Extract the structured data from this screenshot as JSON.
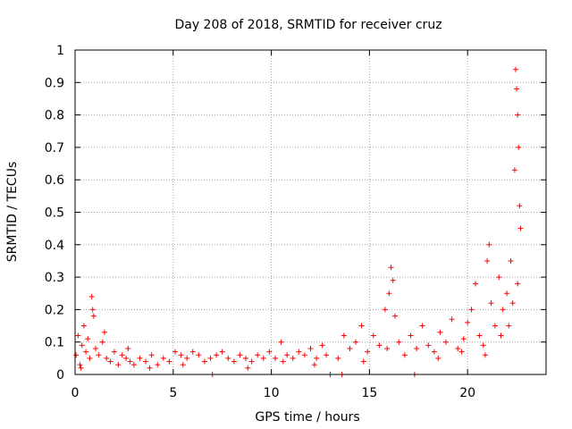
{
  "chart_data": {
    "type": "scatter",
    "title": "Day 208 of 2018, SRMTID for receiver cruz",
    "xlabel": "GPS time / hours",
    "ylabel": "SRMTID / TECUs",
    "xlim": [
      0,
      24
    ],
    "ylim": [
      0,
      1
    ],
    "grid": true,
    "marker": "plus",
    "x_ticks": [
      0,
      5,
      10,
      15,
      20
    ],
    "x_tick_labels": [
      "0",
      "5",
      "10",
      "15",
      "20"
    ],
    "y_ticks": [
      0,
      0.1,
      0.2,
      0.3,
      0.4,
      0.5,
      0.6,
      0.7,
      0.8,
      0.9,
      1
    ],
    "y_tick_labels": [
      "0",
      "0.1",
      "0.2",
      "0.3",
      "0.4",
      "0.5",
      "0.6",
      "0.7",
      "0.8",
      "0.9",
      "1"
    ],
    "series": [
      {
        "name": "SRMTID",
        "color": "#ff0000",
        "x": [
          0.05,
          0.15,
          0.25,
          0.35,
          0.45,
          0.55,
          0.65,
          0.75,
          0.85,
          0.95,
          1.05,
          1.2,
          1.4,
          1.6,
          1.8,
          2.0,
          2.2,
          2.4,
          2.6,
          2.8,
          3.0,
          3.3,
          3.6,
          3.9,
          4.2,
          4.5,
          4.8,
          5.1,
          5.4,
          5.7,
          6.0,
          6.3,
          6.6,
          6.9,
          7.2,
          7.5,
          7.8,
          8.1,
          8.4,
          8.7,
          9.0,
          9.3,
          9.6,
          9.9,
          10.2,
          10.5,
          10.8,
          11.1,
          11.4,
          11.7,
          12.0,
          12.3,
          12.6,
          12.8,
          13.0,
          13.4,
          13.7,
          14.0,
          14.3,
          14.6,
          14.9,
          15.2,
          15.5,
          15.8,
          16.0,
          16.1,
          16.2,
          16.3,
          16.5,
          16.8,
          17.1,
          17.4,
          17.7,
          18.0,
          18.3,
          18.6,
          18.9,
          19.2,
          19.5,
          19.8,
          20.0,
          20.2,
          20.4,
          20.6,
          20.8,
          21.0,
          21.1,
          21.2,
          21.4,
          21.6,
          21.8,
          22.0,
          22.1,
          22.2,
          22.3,
          22.4,
          22.45,
          22.5,
          22.55,
          22.6,
          22.65,
          22.7,
          0.3,
          0.9,
          1.5,
          2.7,
          3.8,
          5.5,
          7.0,
          8.8,
          10.6,
          12.2,
          13.6,
          14.7,
          15.9,
          17.3,
          18.5,
          19.7,
          20.9,
          21.7,
          22.55
        ],
        "y": [
          0.06,
          0.12,
          0.03,
          0.09,
          0.15,
          0.07,
          0.11,
          0.05,
          0.24,
          0.18,
          0.08,
          0.06,
          0.1,
          0.05,
          0.04,
          0.07,
          0.03,
          0.06,
          0.05,
          0.04,
          0.03,
          0.05,
          0.04,
          0.06,
          0.03,
          0.05,
          0.04,
          0.07,
          0.06,
          0.05,
          0.07,
          0.06,
          0.04,
          0.05,
          0.06,
          0.07,
          0.05,
          0.04,
          0.06,
          0.05,
          0.04,
          0.06,
          0.05,
          0.07,
          0.05,
          0.1,
          0.06,
          0.05,
          0.07,
          0.06,
          0.08,
          0.05,
          0.09,
          0.06,
          0.0,
          0.05,
          0.12,
          0.08,
          0.1,
          0.15,
          0.07,
          0.12,
          0.09,
          0.2,
          0.25,
          0.33,
          0.29,
          0.18,
          0.1,
          0.06,
          0.12,
          0.08,
          0.15,
          0.09,
          0.07,
          0.13,
          0.1,
          0.17,
          0.08,
          0.11,
          0.16,
          0.2,
          0.28,
          0.12,
          0.09,
          0.35,
          0.4,
          0.22,
          0.15,
          0.3,
          0.2,
          0.25,
          0.15,
          0.35,
          0.22,
          0.63,
          0.94,
          0.88,
          0.8,
          0.7,
          0.52,
          0.45,
          0.02,
          0.2,
          0.13,
          0.08,
          0.02,
          0.03,
          0.0,
          0.02,
          0.04,
          0.03,
          0.0,
          0.04,
          0.08,
          0.0,
          0.05,
          0.07,
          0.06,
          0.12,
          0.28
        ]
      }
    ]
  }
}
